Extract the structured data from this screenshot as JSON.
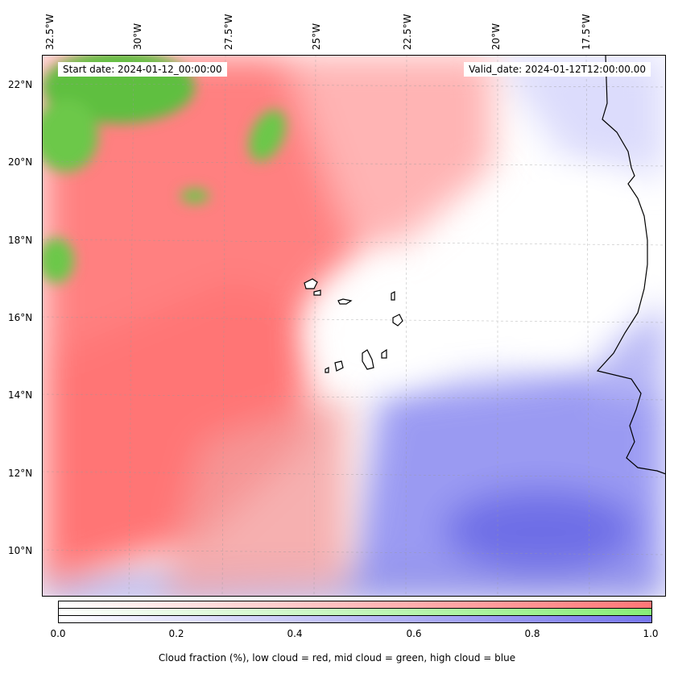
{
  "map": {
    "start_label": "Start date: 2024-01-12_00:00:00",
    "valid_label": "Valid_date: 2024-01-12T12:00:00.00",
    "lon_labels": [
      "32.5°W",
      "30°W",
      "27.5°W",
      "25°W",
      "22.5°W",
      "20°W",
      "17.5°W"
    ],
    "lat_labels": [
      "22°N",
      "20°N",
      "18°N",
      "16°N",
      "14°N",
      "12°N",
      "10°N"
    ],
    "colors": {
      "low_cloud": "#ff7777",
      "mid_cloud": "#66cc44",
      "high_cloud": "#7777ee",
      "coast": "#000000"
    }
  },
  "colorbar": {
    "ticks": [
      "0.0",
      "0.2",
      "0.4",
      "0.6",
      "0.8",
      "1.0"
    ],
    "caption": "Cloud fraction (%), low cloud = red, mid cloud = green, high cloud = blue",
    "range": [
      0,
      1
    ]
  }
}
